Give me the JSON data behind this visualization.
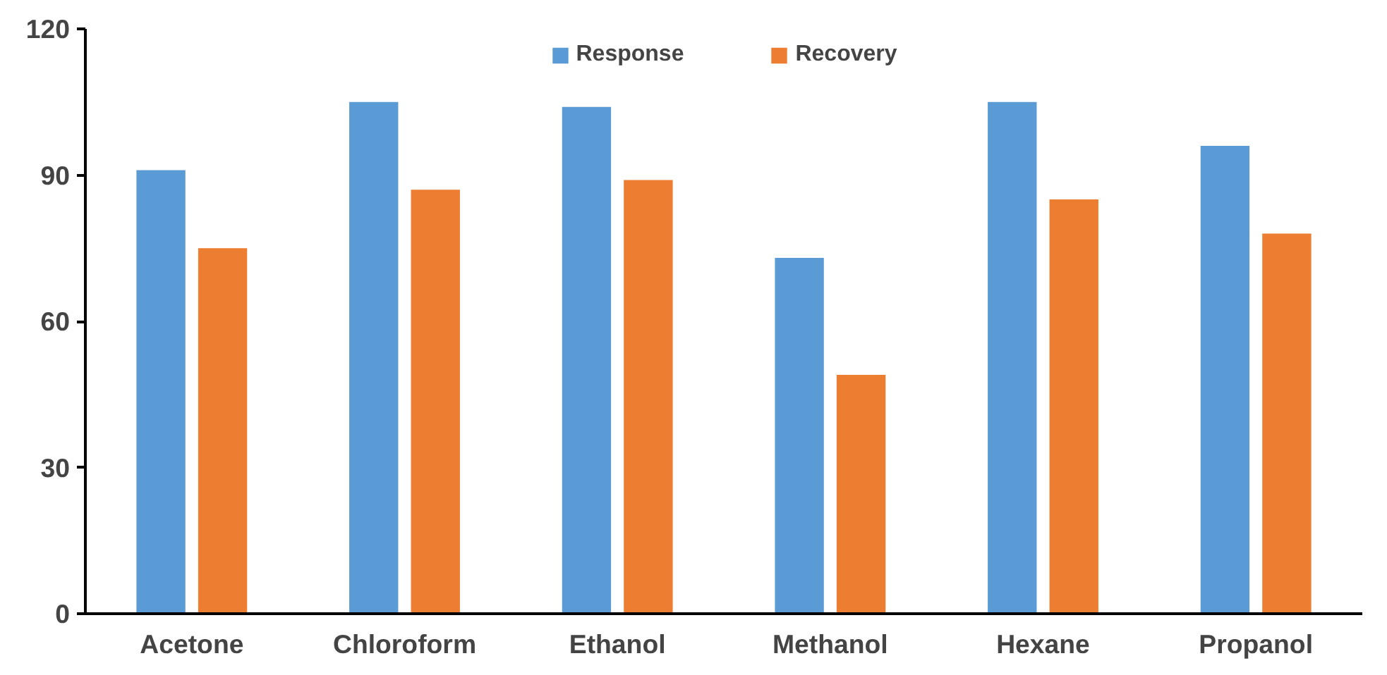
{
  "chart_data": {
    "type": "bar",
    "categories": [
      "Acetone",
      "Chloroform",
      "Ethanol",
      "Methanol",
      "Hexane",
      "Propanol"
    ],
    "series": [
      {
        "name": "Response",
        "color": "#5b9bd5",
        "values": [
          91,
          105,
          104,
          73,
          105,
          96
        ]
      },
      {
        "name": "Recovery",
        "color": "#ed7d31",
        "values": [
          75,
          87,
          89,
          49,
          85,
          78
        ]
      }
    ],
    "ylim": [
      0,
      120
    ],
    "yticks": [
      0,
      30,
      60,
      90,
      120
    ],
    "grid": false,
    "legend": "top"
  }
}
